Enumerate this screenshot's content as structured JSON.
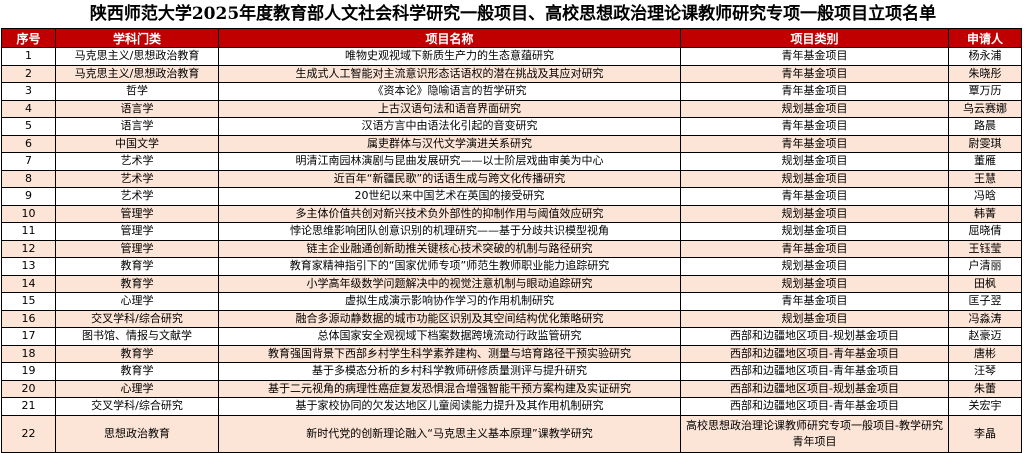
{
  "title": "陕西师范大学2025年度教育部人文社会科学研究一般项目、高校思想政治理论课教师研究专项一般项目立项名单",
  "headers": [
    "序号",
    "学科门类",
    "项目名称",
    "项目类别",
    "申请人"
  ],
  "colors": {
    "header_bg": "#c00000",
    "alt_row": "#fce4d6"
  },
  "rows": [
    [
      "1",
      "马克思主义/思想政治教育",
      "唯物史观视域下新质生产力的生态意蕴研究",
      "青年基金项目",
      "杨永浦"
    ],
    [
      "2",
      "马克思主义/思想政治教育",
      "生成式人工智能对主流意识形态话语权的潜在挑战及其应对研究",
      "青年基金项目",
      "朱晓彤"
    ],
    [
      "3",
      "哲学",
      "《资本论》隐喻语言的哲学研究",
      "青年基金项目",
      "覃万历"
    ],
    [
      "4",
      "语言学",
      "上古汉语句法和语音界面研究",
      "规划基金项目",
      "乌云赛娜"
    ],
    [
      "5",
      "语言学",
      "汉语方言中由语法化引起的音变研究",
      "青年基金项目",
      "路晨"
    ],
    [
      "6",
      "中国文学",
      "属吏群体与汉代文学演进关系研究",
      "青年基金项目",
      "尉雯琪"
    ],
    [
      "7",
      "艺术学",
      "明清江南园林演剧与昆曲发展研究——以士阶层戏曲审美为中心",
      "规划基金项目",
      "董雁"
    ],
    [
      "8",
      "艺术学",
      "近百年“新疆民歌”的话语生成与跨文化传播研究",
      "规划基金项目",
      "王慧"
    ],
    [
      "9",
      "艺术学",
      "20世纪以来中国艺术在英国的接受研究",
      "青年基金项目",
      "冯晗"
    ],
    [
      "10",
      "管理学",
      "多主体价值共创对新兴技术负外部性的抑制作用与阈值效应研究",
      "规划基金项目",
      "韩菁"
    ],
    [
      "11",
      "管理学",
      "悖论思维影响团队创意识别的机理研究——基于分歧共识模型视角",
      "规划基金项目",
      "屈晓倩"
    ],
    [
      "12",
      "管理学",
      "链主企业融通创新助推关键核心技术突破的机制与路径研究",
      "青年基金项目",
      "王钰莹"
    ],
    [
      "13",
      "教育学",
      "教育家精神指引下的“国家优师专项”师范生教师职业能力追踪研究",
      "规划基金项目",
      "户清丽"
    ],
    [
      "14",
      "教育学",
      "小学高年级数学问题解决中的视觉注意机制与眼动追踪研究",
      "规划基金项目",
      "田枫"
    ],
    [
      "15",
      "心理学",
      "虚拟生成演示影响协作学习的作用机制研究",
      "青年基金项目",
      "匡子翌"
    ],
    [
      "16",
      "交叉学科/综合研究",
      "融合多源动静数据的城市功能区识别及其空间结构优化策略研究",
      "规划基金项目",
      "冯淼涛"
    ],
    [
      "17",
      "图书馆、情报与文献学",
      "总体国家安全观视域下档案数据跨境流动行政监管研究",
      "西部和边疆地区项目-规划基金项目",
      "赵豪迈"
    ],
    [
      "18",
      "教育学",
      "教育强国背景下西部乡村学生科学素养建构、测量与培育路径干预实验研究",
      "西部和边疆地区项目-青年基金项目",
      "唐彬"
    ],
    [
      "19",
      "教育学",
      "基于多模态分析的乡村科学教师研修质量测评与提升研究",
      "西部和边疆地区项目-青年基金项目",
      "汪琴"
    ],
    [
      "20",
      "心理学",
      "基于二元视角的病理性癌症复发恐惧混合增强智能干预方案构建及实证研究",
      "西部和边疆地区项目-规划基金项目",
      "朱蕾"
    ],
    [
      "21",
      "交叉学科/综合研究",
      "基于家校协同的欠发达地区儿童阅读能力提升及其作用机制研究",
      "西部和边疆地区项目-青年基金项目",
      "关宏宇"
    ],
    [
      "22",
      "思想政治教育",
      "新时代党的创新理论融入“马克思主义基本原理”课教学研究",
      "高校思想政治理论课教师研究专项一般项目-教学研究青年项目",
      "李晶"
    ]
  ]
}
